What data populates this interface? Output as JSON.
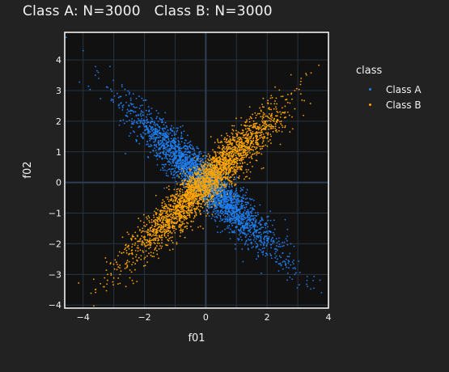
{
  "title": "Class A: N=3000   Class B: N=3000",
  "legend": {
    "title": "class",
    "items": [
      {
        "label": "Class A",
        "color": "#1f7ff0"
      },
      {
        "label": "Class B",
        "color": "#ffa500"
      }
    ]
  },
  "chart_data": {
    "type": "scatter",
    "title": "Class A: N=3000   Class B: N=3000",
    "xlabel": "f01",
    "ylabel": "f02",
    "xlim": [
      -4.6,
      4.0
    ],
    "ylim": [
      -4.1,
      4.9
    ],
    "x_ticks": [
      -4,
      -2,
      0,
      2,
      4
    ],
    "y_ticks": [
      -4,
      -3,
      -2,
      -1,
      0,
      1,
      2,
      3,
      4
    ],
    "x_tick_labels": [
      "−4",
      "−2",
      "0",
      "2",
      "4"
    ],
    "y_tick_labels": [
      "−4",
      "−3",
      "−2",
      "−1",
      "0",
      "1",
      "2",
      "3",
      "4"
    ],
    "grid": true,
    "legend_position": "right",
    "series": [
      {
        "name": "Class A",
        "color": "#1f7ff0",
        "count": 3000,
        "trend": "negative",
        "approx_extent": {
          "x": [
            -4.0,
            3.5
          ],
          "y": [
            -3.3,
            4.3
          ]
        },
        "sample_points": [
          [
            -4.0,
            4.3
          ],
          [
            -3.6,
            3.5
          ],
          [
            -3.2,
            3.1
          ],
          [
            -2.8,
            2.8
          ],
          [
            -2.5,
            2.5
          ],
          [
            -2.2,
            2.2
          ],
          [
            -2.0,
            2.0
          ],
          [
            -1.7,
            1.6
          ],
          [
            -1.4,
            1.4
          ],
          [
            -1.0,
            1.0
          ],
          [
            -0.7,
            0.6
          ],
          [
            -0.4,
            0.4
          ],
          [
            0.0,
            0.0
          ],
          [
            0.4,
            -0.4
          ],
          [
            0.8,
            -0.8
          ],
          [
            1.2,
            -1.2
          ],
          [
            1.6,
            -1.6
          ],
          [
            2.0,
            -2.0
          ],
          [
            2.3,
            -2.4
          ],
          [
            2.6,
            -2.7
          ],
          [
            2.9,
            -3.0
          ],
          [
            3.3,
            -3.2
          ],
          [
            3.5,
            -3.2
          ]
        ]
      },
      {
        "name": "Class B",
        "color": "#ffa500",
        "count": 3000,
        "trend": "positive",
        "approx_extent": {
          "x": [
            -3.6,
            3.1
          ],
          "y": [
            -3.5,
            3.3
          ]
        },
        "sample_points": [
          [
            -3.6,
            -3.5
          ],
          [
            -3.2,
            -3.0
          ],
          [
            -2.8,
            -2.7
          ],
          [
            -2.4,
            -2.3
          ],
          [
            -2.0,
            -2.0
          ],
          [
            -1.6,
            -1.6
          ],
          [
            -1.2,
            -1.2
          ],
          [
            -0.8,
            -0.8
          ],
          [
            -0.4,
            -0.4
          ],
          [
            0.0,
            0.0
          ],
          [
            0.4,
            0.4
          ],
          [
            0.8,
            0.8
          ],
          [
            1.2,
            1.2
          ],
          [
            1.6,
            1.6
          ],
          [
            2.0,
            2.0
          ],
          [
            2.3,
            2.4
          ],
          [
            2.6,
            2.7
          ],
          [
            2.9,
            3.0
          ],
          [
            3.1,
            3.3
          ]
        ]
      }
    ]
  }
}
